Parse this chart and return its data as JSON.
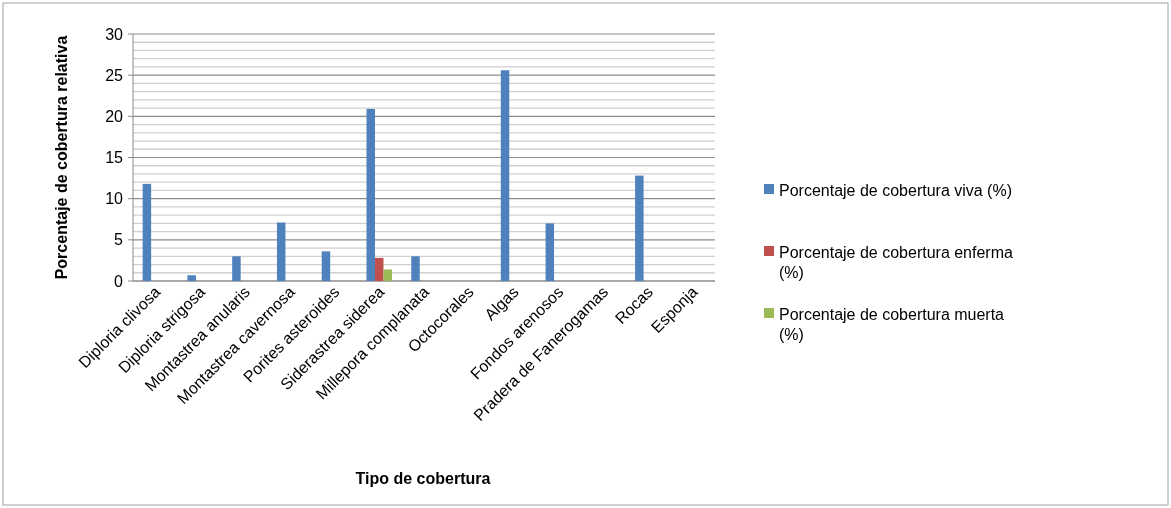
{
  "chart_data": {
    "type": "bar",
    "xlabel": "Tipo de cobertura",
    "ylabel": "Porcentaje de cobertura relativa",
    "categories": [
      "Diploria clivosa",
      "Diploria strigosa",
      "Montastrea anularis",
      "Montastrea cavernosa",
      "Porites asteroides",
      "Siderastrea siderea",
      "Millepora complanata",
      "Octocorales",
      "Algas",
      "Fondos arenosos",
      "Pradera de Fanerogamas",
      "Rocas",
      "Esponja"
    ],
    "series": [
      {
        "name": "Porcentaje de cobertura viva (%)",
        "color": "#4f81bd",
        "values": [
          11.8,
          0.7,
          3.0,
          7.1,
          3.6,
          20.9,
          3.0,
          0,
          25.6,
          7.0,
          0,
          12.8,
          0
        ]
      },
      {
        "name": "Porcentaje de cobertura enferma (%)",
        "color": "#c0504d",
        "values": [
          0,
          0,
          0,
          0,
          0,
          2.8,
          0,
          0,
          0,
          0,
          0,
          0,
          0
        ]
      },
      {
        "name": "Porcentaje de cobertura muerta (%)",
        "color": "#9bbb59",
        "values": [
          0,
          0,
          0,
          0,
          0,
          1.4,
          0,
          0,
          0,
          0,
          0,
          0,
          0
        ]
      }
    ],
    "ylim": [
      0,
      30
    ],
    "yticks": [
      0,
      {
        "value": 1,
        "label": null
      },
      {
        "value": 2,
        "label": null
      },
      {
        "value": 3,
        "label": null
      },
      {
        "value": 4,
        "label": null
      },
      5,
      {
        "value": 6,
        "label": null
      },
      {
        "value": 7,
        "label": null
      },
      {
        "value": 8,
        "label": null
      },
      {
        "value": 9,
        "label": null
      },
      10,
      {
        "value": 11,
        "label": null
      },
      {
        "value": 12,
        "label": null
      },
      {
        "value": 13,
        "label": null
      },
      {
        "value": 14,
        "label": null
      },
      15,
      {
        "value": 16,
        "label": null
      },
      {
        "value": 17,
        "label": null
      },
      {
        "value": 18,
        "label": null
      },
      {
        "value": 19,
        "label": null
      },
      20,
      {
        "value": 21,
        "label": null
      },
      {
        "value": 22,
        "label": null
      },
      {
        "value": 23,
        "label": null
      },
      {
        "value": 24,
        "label": null
      },
      25,
      {
        "value": 26,
        "label": null
      },
      {
        "value": 27,
        "label": null
      },
      {
        "value": 28,
        "label": null
      },
      {
        "value": 29,
        "label": null
      },
      30
    ],
    "grid": true,
    "legend": "right"
  }
}
